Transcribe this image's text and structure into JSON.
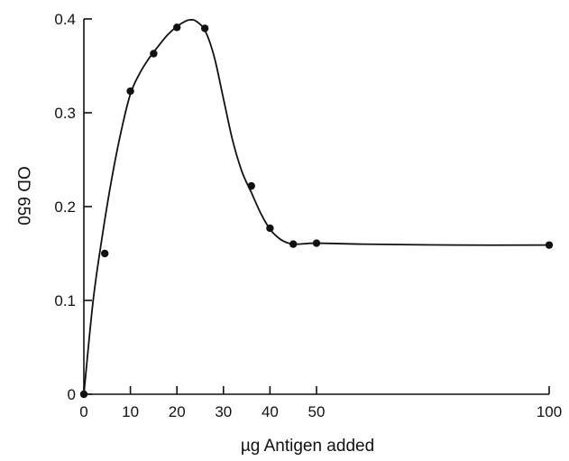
{
  "chart_data": {
    "type": "line",
    "title": "",
    "xlabel": "µg Antigen added",
    "ylabel": "OD 650",
    "xlim": [
      0,
      100
    ],
    "ylim": [
      0,
      0.4
    ],
    "grid": false,
    "x_ticks": [
      0,
      10,
      20,
      30,
      40,
      50,
      100
    ],
    "x_tick_labels": [
      "0",
      "10",
      "20",
      "30",
      "40",
      "50",
      "100"
    ],
    "y_ticks": [
      0,
      0.1,
      0.2,
      0.3,
      0.4
    ],
    "y_tick_labels": [
      "0",
      "0.1",
      "0.2",
      "0.3",
      "0.4"
    ],
    "series": [
      {
        "points": [
          {
            "x": 0,
            "y": 0.0
          },
          {
            "x": 4.5,
            "y": 0.15
          },
          {
            "x": 10,
            "y": 0.323
          },
          {
            "x": 15,
            "y": 0.363
          },
          {
            "x": 20,
            "y": 0.391
          },
          {
            "x": 26,
            "y": 0.39
          },
          {
            "x": 36,
            "y": 0.222
          },
          {
            "x": 40,
            "y": 0.177
          },
          {
            "x": 45,
            "y": 0.16
          },
          {
            "x": 50,
            "y": 0.161
          },
          {
            "x": 100,
            "y": 0.159
          }
        ],
        "curve": [
          [
            0,
            0.0
          ],
          [
            2,
            0.1
          ],
          [
            4,
            0.17
          ],
          [
            6,
            0.23
          ],
          [
            8,
            0.28
          ],
          [
            10,
            0.32
          ],
          [
            12,
            0.342
          ],
          [
            14,
            0.358
          ],
          [
            16,
            0.371
          ],
          [
            18,
            0.383
          ],
          [
            20,
            0.392
          ],
          [
            22,
            0.398
          ],
          [
            23,
            0.399
          ],
          [
            24,
            0.398
          ],
          [
            26,
            0.388
          ],
          [
            28,
            0.36
          ],
          [
            30,
            0.315
          ],
          [
            32,
            0.27
          ],
          [
            34,
            0.237
          ],
          [
            36,
            0.215
          ],
          [
            38,
            0.193
          ],
          [
            40,
            0.176
          ],
          [
            42,
            0.166
          ],
          [
            44,
            0.161
          ],
          [
            46,
            0.16
          ],
          [
            50,
            0.161
          ],
          [
            60,
            0.16
          ],
          [
            80,
            0.159
          ],
          [
            100,
            0.159
          ]
        ]
      }
    ]
  }
}
